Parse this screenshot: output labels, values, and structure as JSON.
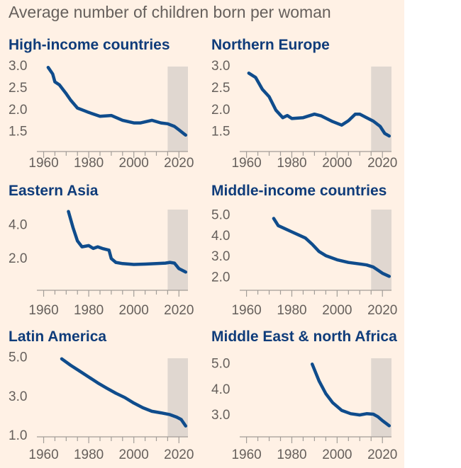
{
  "title": "Average number of children born per woman",
  "colors": {
    "line": "#0f4c8c",
    "panel_title": "#0f3c7a",
    "background": "#fff1e5",
    "projection_band": "#e0d7d0"
  },
  "chart_data": [
    {
      "type": "line",
      "title": "High-income countries",
      "xticks": [
        "1960",
        "1980",
        "2000",
        "2020"
      ],
      "xlim": [
        1957,
        2024
      ],
      "yticks": [
        "3.0",
        "2.5",
        "2.0",
        "1.5"
      ],
      "ylim": [
        1.3,
        3.1
      ],
      "projection_start": 2015,
      "x": [
        1962,
        1964,
        1965,
        1967,
        1970,
        1972,
        1975,
        1978,
        1980,
        1985,
        1990,
        1995,
        2000,
        2003,
        2008,
        2012,
        2015,
        2018,
        2020,
        2022,
        2023
      ],
      "y": [
        2.95,
        2.8,
        2.62,
        2.55,
        2.35,
        2.2,
        2.02,
        1.96,
        1.92,
        1.83,
        1.85,
        1.74,
        1.68,
        1.68,
        1.74,
        1.68,
        1.66,
        1.6,
        1.52,
        1.44,
        1.4
      ]
    },
    {
      "type": "line",
      "title": "Northern Europe",
      "xticks": [
        "1960",
        "1980",
        "2000",
        "2020"
      ],
      "xlim": [
        1957,
        2024
      ],
      "yticks": [
        "3.0",
        "2.5",
        "2.0",
        "1.5"
      ],
      "ylim": [
        1.3,
        3.1
      ],
      "projection_start": 2015,
      "x": [
        1961,
        1964,
        1967,
        1970,
        1973,
        1976,
        1978,
        1980,
        1985,
        1990,
        1993,
        1998,
        2002,
        2005,
        2008,
        2010,
        2013,
        2016,
        2019,
        2021,
        2023
      ],
      "y": [
        2.82,
        2.72,
        2.45,
        2.28,
        1.97,
        1.8,
        1.85,
        1.78,
        1.8,
        1.88,
        1.84,
        1.71,
        1.63,
        1.73,
        1.88,
        1.88,
        1.8,
        1.72,
        1.6,
        1.44,
        1.38
      ]
    },
    {
      "type": "line",
      "title": "Eastern Asia",
      "xticks": [
        "1960",
        "1980",
        "2000",
        "2020"
      ],
      "xlim": [
        1957,
        2024
      ],
      "yticks": [
        "4.0",
        "2.0"
      ],
      "ylim": [
        0.4,
        5.2
      ],
      "projection_start": 2015,
      "x": [
        1971,
        1973,
        1975,
        1977,
        1980,
        1982,
        1984,
        1986,
        1989,
        1990,
        1992,
        1995,
        2000,
        2005,
        2010,
        2014,
        2016,
        2018,
        2020,
        2023
      ],
      "y": [
        4.75,
        3.8,
        3.0,
        2.65,
        2.72,
        2.55,
        2.65,
        2.55,
        2.45,
        1.95,
        1.72,
        1.65,
        1.6,
        1.62,
        1.65,
        1.68,
        1.72,
        1.68,
        1.35,
        1.15
      ]
    },
    {
      "type": "line",
      "title": "Middle-income countries",
      "xticks": [
        "1960",
        "1980",
        "2000",
        "2020"
      ],
      "xlim": [
        1957,
        2024
      ],
      "yticks": [
        "5.0",
        "4.0",
        "3.0",
        "2.0"
      ],
      "ylim": [
        1.6,
        5.5
      ],
      "projection_start": 2015,
      "x": [
        1972,
        1974,
        1977,
        1980,
        1983,
        1986,
        1989,
        1992,
        1995,
        2000,
        2005,
        2010,
        2013,
        2016,
        2018,
        2020,
        2023
      ],
      "y": [
        4.8,
        4.45,
        4.3,
        4.15,
        4.0,
        3.85,
        3.55,
        3.2,
        3.0,
        2.8,
        2.67,
        2.6,
        2.55,
        2.45,
        2.3,
        2.15,
        2.0
      ]
    },
    {
      "type": "line",
      "title": "Latin America",
      "xticks": [
        "1960",
        "1980",
        "2000",
        "2020"
      ],
      "xlim": [
        1957,
        2024
      ],
      "yticks": [
        "5.0",
        "3.0",
        "1.0"
      ],
      "ylim": [
        1.0,
        5.2
      ],
      "projection_start": 2015,
      "x": [
        1968,
        1972,
        1976,
        1980,
        1984,
        1988,
        1992,
        1996,
        2000,
        2004,
        2008,
        2012,
        2016,
        2019,
        2021,
        2023
      ],
      "y": [
        4.88,
        4.55,
        4.25,
        3.95,
        3.65,
        3.38,
        3.12,
        2.9,
        2.62,
        2.38,
        2.2,
        2.12,
        2.03,
        1.9,
        1.78,
        1.45
      ]
    },
    {
      "type": "line",
      "title": "Middle East & north Africa",
      "xticks": [
        "1960",
        "1980",
        "2000",
        "2020"
      ],
      "xlim": [
        1957,
        2024
      ],
      "yticks": [
        "5.0",
        "4.0",
        "3.0"
      ],
      "ylim": [
        2.2,
        5.4
      ],
      "projection_start": 2015,
      "x": [
        1989,
        1992,
        1995,
        1998,
        2002,
        2006,
        2010,
        2013,
        2016,
        2018,
        2020,
        2023
      ],
      "y": [
        4.95,
        4.3,
        3.8,
        3.45,
        3.15,
        3.02,
        2.97,
        3.02,
        3.0,
        2.9,
        2.75,
        2.55
      ]
    }
  ]
}
